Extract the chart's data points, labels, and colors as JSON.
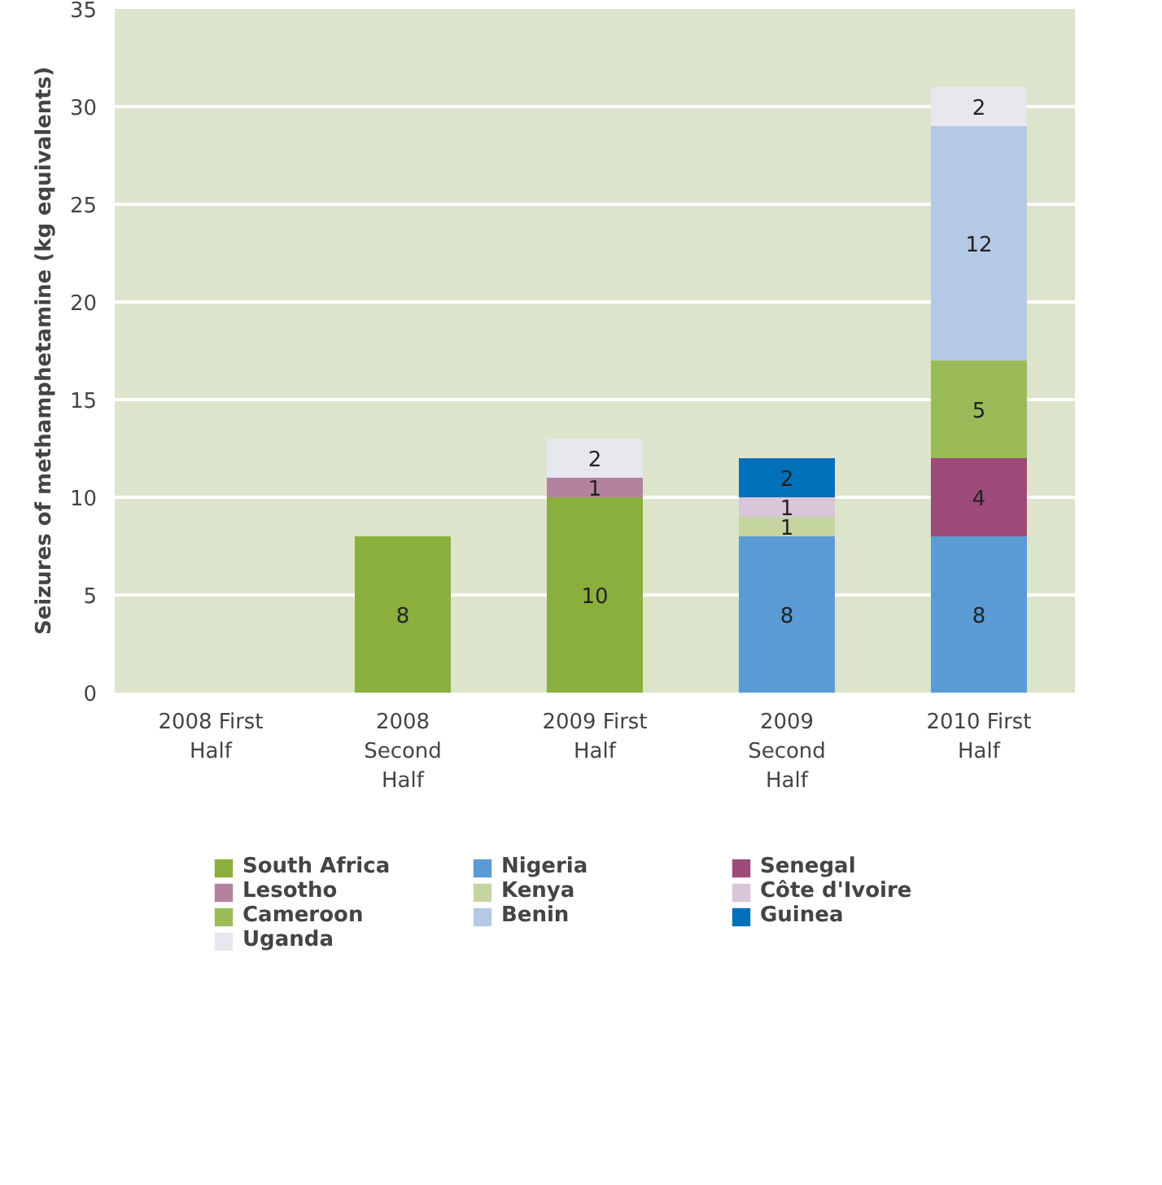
{
  "chart_data": {
    "type": "bar",
    "stacked": true,
    "ylabel": "Seizures of methamphetamine (kg equivalents)",
    "categories": [
      "2008 First Half",
      "2008 Second Half",
      "2009 First Half",
      "2009 Second Half",
      "2010 First Half"
    ],
    "series": [
      {
        "name": "South Africa",
        "color": "#8aaf3c",
        "values": [
          null,
          8,
          10,
          null,
          null
        ]
      },
      {
        "name": "Nigeria",
        "color": "#5b9bd5",
        "values": [
          null,
          null,
          null,
          8,
          8
        ]
      },
      {
        "name": "Senegal",
        "color": "#9e4a7a",
        "values": [
          null,
          null,
          null,
          null,
          4
        ]
      },
      {
        "name": "Lesotho",
        "color": "#b4819f",
        "values": [
          null,
          null,
          1,
          null,
          null
        ]
      },
      {
        "name": "Kenya",
        "color": "#c5d5a0",
        "values": [
          null,
          null,
          null,
          1,
          null
        ]
      },
      {
        "name": "Côte d'Ivoire",
        "color": "#d9c6d9",
        "values": [
          null,
          null,
          null,
          1,
          null
        ]
      },
      {
        "name": "Cameroon",
        "color": "#9bbb59",
        "values": [
          null,
          null,
          null,
          null,
          5
        ]
      },
      {
        "name": "Benin",
        "color": "#b4c9e6",
        "values": [
          null,
          null,
          null,
          null,
          12
        ]
      },
      {
        "name": "Guinea",
        "color": "#0070b8",
        "values": [
          null,
          null,
          null,
          2,
          null
        ]
      },
      {
        "name": "Uganda",
        "color": "#e6e8ee",
        "values": [
          null,
          null,
          2,
          null,
          2
        ]
      }
    ],
    "ylim": [
      0,
      35
    ],
    "yticks": [
      0,
      5,
      10,
      15,
      20,
      25,
      30,
      35
    ],
    "grid": "y",
    "data_labels": true,
    "legend": "bottom"
  }
}
